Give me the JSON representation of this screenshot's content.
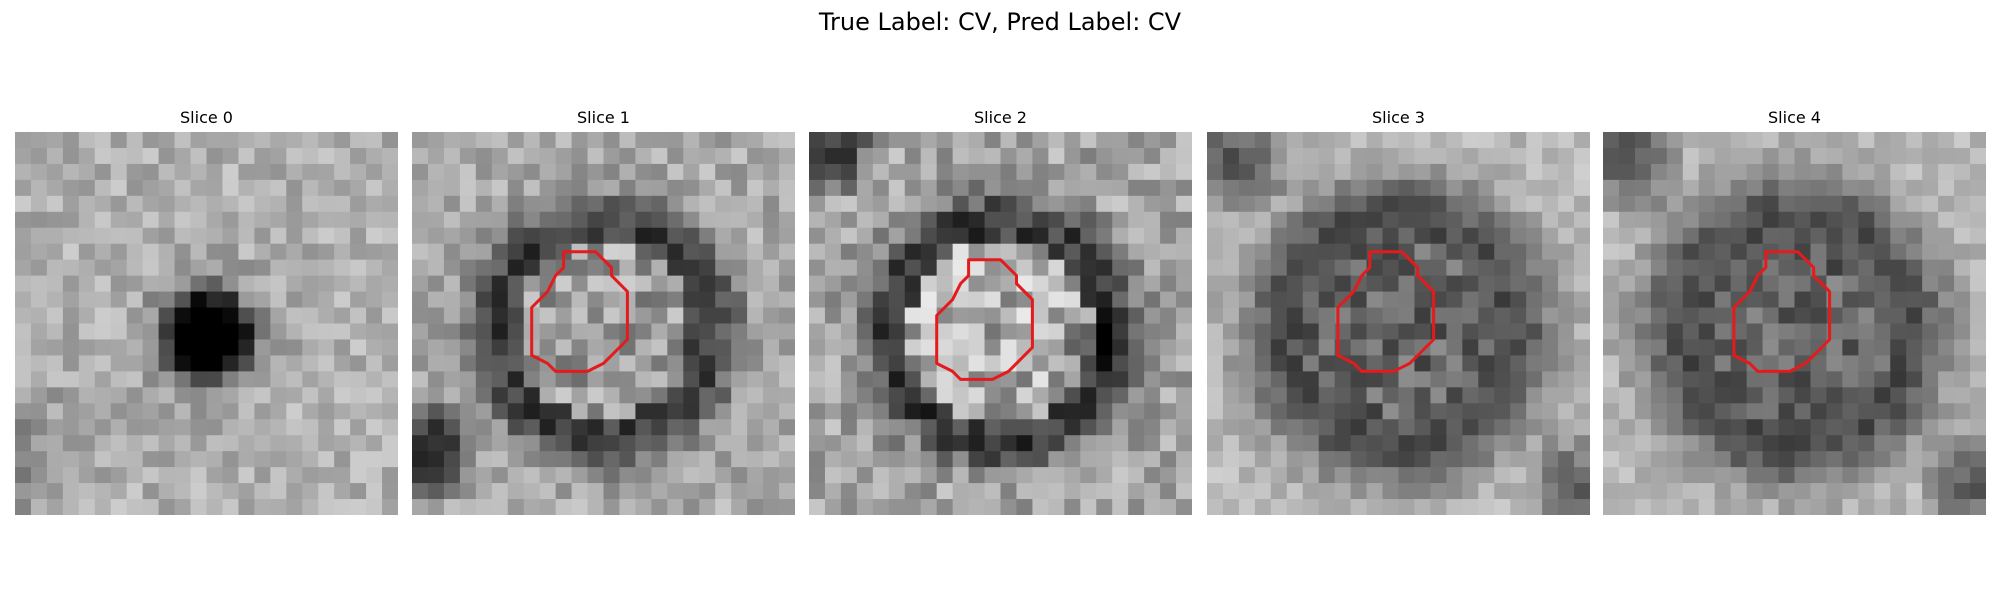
{
  "figure": {
    "title": "True Label: CV, Pred Label: CV"
  },
  "slices": [
    {
      "title": "Slice 0",
      "has_contour": false,
      "contour_color": "#e41a1c"
    },
    {
      "title": "Slice 1",
      "has_contour": true,
      "contour_color": "#e41a1c"
    },
    {
      "title": "Slice 2",
      "has_contour": true,
      "contour_color": "#e41a1c"
    },
    {
      "title": "Slice 3",
      "has_contour": true,
      "contour_color": "#e41a1c"
    },
    {
      "title": "Slice 4",
      "has_contour": true,
      "contour_color": "#e41a1c"
    }
  ],
  "colormap": "gray"
}
